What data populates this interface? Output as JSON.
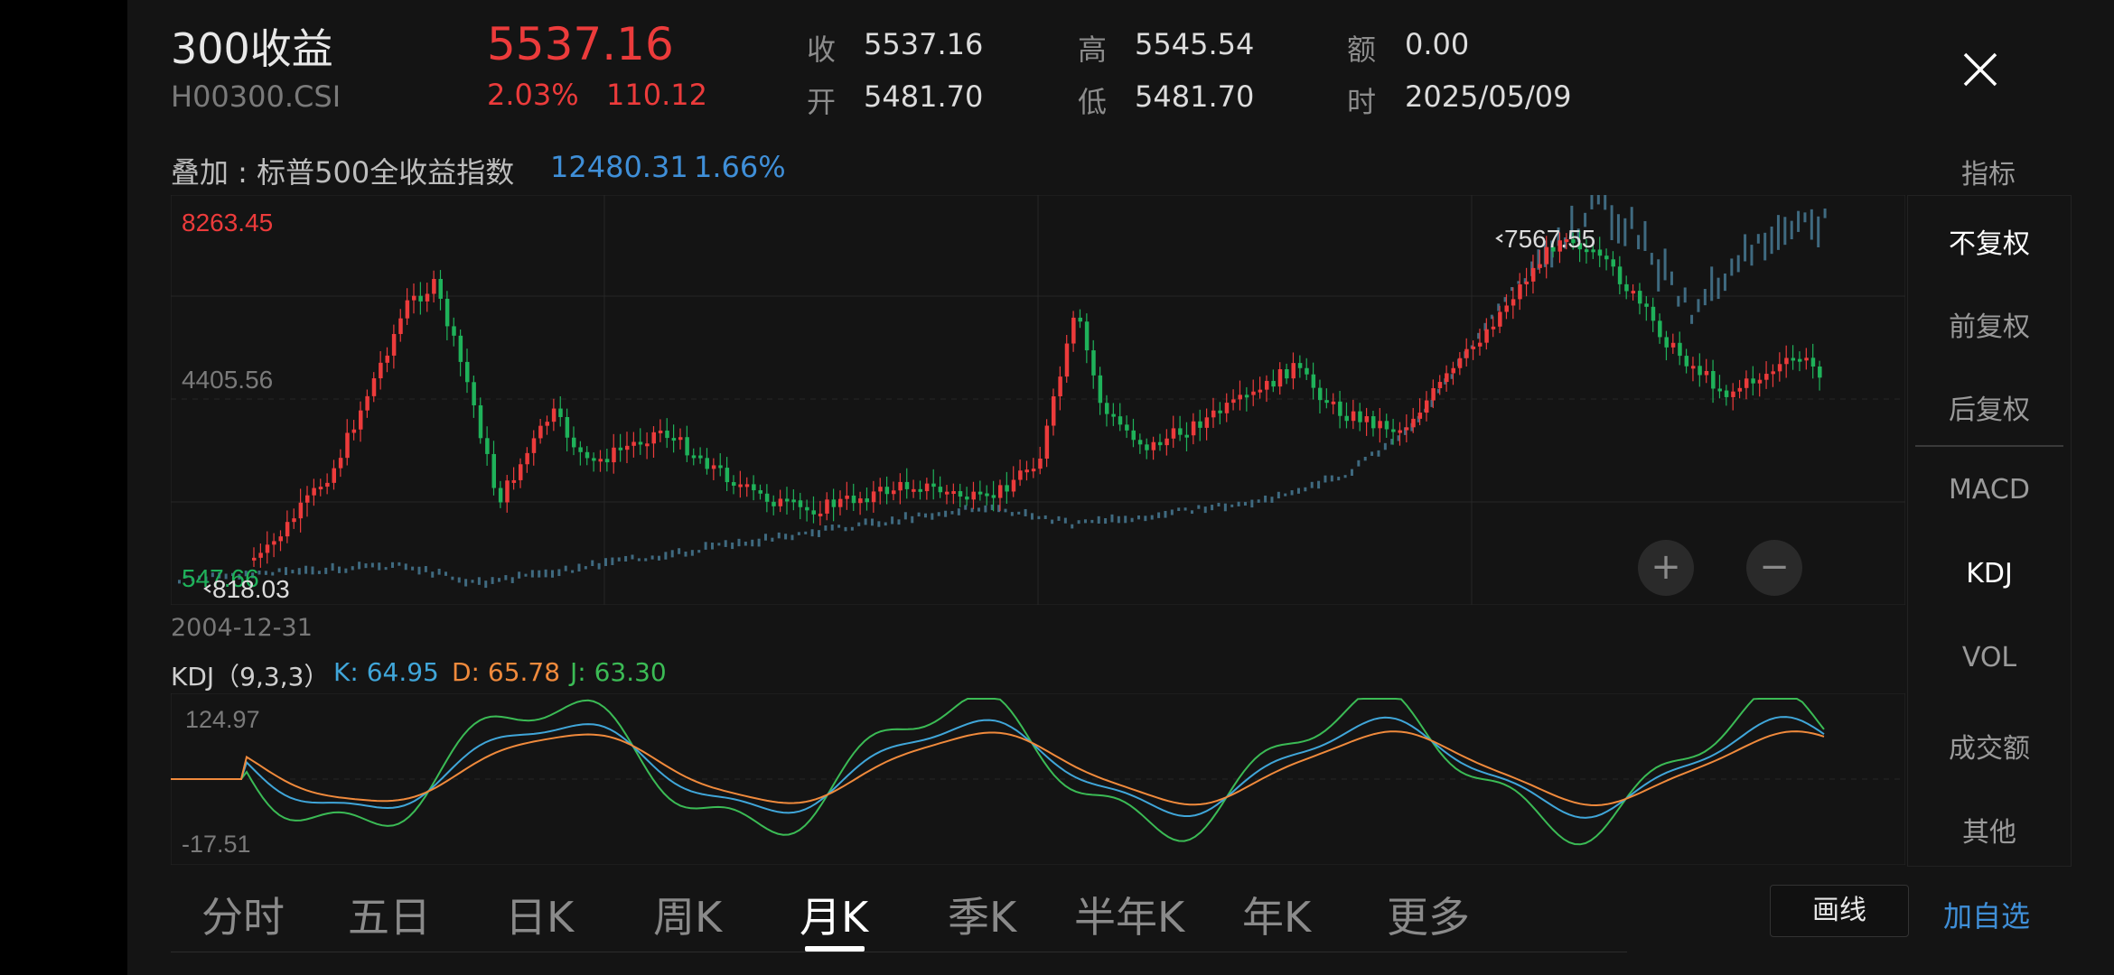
{
  "header": {
    "title": "300收益",
    "code": "H00300.CSI",
    "price": "5537.16",
    "change_pct": "2.03%",
    "change_amt": "110.12",
    "stats": [
      {
        "label": "收",
        "value": "5537.16"
      },
      {
        "label": "开",
        "value": "5481.70"
      },
      {
        "label": "高",
        "value": "5545.54"
      },
      {
        "label": "低",
        "value": "5481.70"
      },
      {
        "label": "额",
        "value": "0.00"
      },
      {
        "label": "时",
        "value": "2025/05/09"
      }
    ]
  },
  "overlay": {
    "label": "叠加 : 标普500全收益指数",
    "value": "12480.31",
    "pct": "1.66%"
  },
  "indicator_button": "指标",
  "main_chart": {
    "max_label": "8263.45",
    "mid_label": "4405.56",
    "min_label": "547.66",
    "low_marker": "818.03",
    "high_marker": "7567.55",
    "start_date": "2004-12-31"
  },
  "kdj": {
    "label": "KDJ（9,3,3）",
    "k": "K: 64.95",
    "d": "D: 65.78",
    "j": "J: 63.30",
    "max_label": "124.97",
    "min_label": "-17.51"
  },
  "side_panel": {
    "items": [
      "不复权",
      "前复权",
      "后复权",
      "MACD",
      "KDJ",
      "VOL",
      "成交额",
      "其他"
    ],
    "active": [
      "不复权",
      "KDJ"
    ]
  },
  "tabs": [
    "分时",
    "五日",
    "日K",
    "周K",
    "月K",
    "季K",
    "半年K",
    "年K",
    "更多"
  ],
  "active_tab": "月K",
  "buttons": {
    "draw": "画线",
    "add_watch": "加自选",
    "zoom_in": "+",
    "zoom_out": "−"
  },
  "colors": {
    "up": "#ec3b3b",
    "down": "#1fb25a",
    "overlay": "#3f8fd8",
    "k_line": "#40a6d9",
    "d_line": "#f08a3c",
    "j_line": "#3bbb55"
  },
  "icons": {
    "close": "close-icon"
  }
}
